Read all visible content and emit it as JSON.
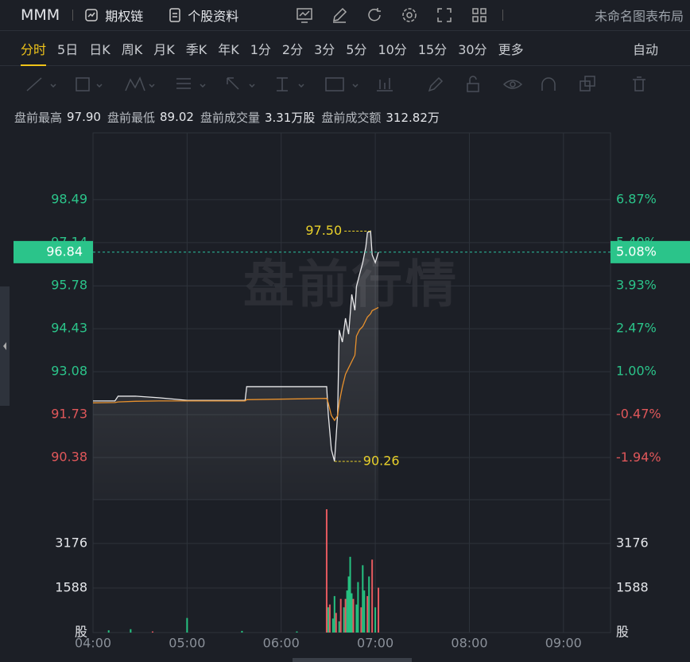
{
  "header": {
    "symbol": "MMM",
    "links": [
      "期权链",
      "个股资料"
    ],
    "layout": "未命名图表布局"
  },
  "tabs": [
    "分时",
    "5日",
    "日K",
    "周K",
    "月K",
    "季K",
    "年K",
    "1分",
    "2分",
    "3分",
    "5分",
    "10分",
    "15分",
    "30分",
    "更多"
  ],
  "mode": "自动",
  "info": [
    {
      "label": "盘前最高",
      "value": "97.90"
    },
    {
      "label": "盘前最低",
      "value": "89.02"
    },
    {
      "label": "盘前成交量",
      "value": "3.31万股"
    },
    {
      "label": "盘前成交额",
      "value": "312.82万"
    }
  ],
  "watermark": "盘前行情",
  "chart_data": [
    {
      "type": "line",
      "x": [
        "04:00",
        "04:14",
        "04:16",
        "04:27",
        "04:42",
        "05:00",
        "05:37",
        "05:38",
        "06:29",
        "06:30",
        "06:32",
        "06:34",
        "06:36",
        "06:37",
        "06:39",
        "06:41",
        "06:43",
        "06:45",
        "06:47",
        "06:48",
        "06:50",
        "06:52",
        "06:54",
        "06:55",
        "06:57",
        "06:58",
        "07:00",
        "07:02"
      ],
      "series": [
        {
          "color": "#e8e8ea",
          "values": [
            92.16,
            92.16,
            92.31,
            92.31,
            92.26,
            92.18,
            92.18,
            92.61,
            92.61,
            91.76,
            90.63,
            90.26,
            91.76,
            94.39,
            94.01,
            94.76,
            94.26,
            95.51,
            95.01,
            95.76,
            96.14,
            96.51,
            97.01,
            97.46,
            97.5,
            96.76,
            96.51,
            96.84
          ]
        },
        {
          "color": "#e8912d",
          "values": [
            92.1,
            92.11,
            92.13,
            92.15,
            92.16,
            92.16,
            92.16,
            92.2,
            92.24,
            92.1,
            91.7,
            91.55,
            91.7,
            92.1,
            92.6,
            93.0,
            93.2,
            93.4,
            93.6,
            94.2,
            94.4,
            94.5,
            94.7,
            94.8,
            94.9,
            95.0,
            95.05,
            95.1
          ]
        }
      ],
      "xlim": [
        "04:00",
        "09:30"
      ],
      "ylim": [
        89.055,
        100.59
      ],
      "yticks": [
        98.49,
        97.14,
        95.78,
        94.43,
        93.08,
        91.73,
        90.38
      ],
      "y2lim": [
        -3.37,
        9.15
      ],
      "y2ticks": [
        {
          "value": 6.87,
          "label": "6.87%"
        },
        {
          "value": 5.4,
          "label": "5.40%"
        },
        {
          "value": 3.93,
          "label": "3.93%"
        },
        {
          "value": 2.47,
          "label": "2.47%"
        },
        {
          "value": 1.0,
          "label": "1.00%"
        },
        {
          "value": -0.47,
          "label": "-0.47%"
        },
        {
          "value": -1.94,
          "label": "-1.94%"
        }
      ],
      "current_price": 96.84,
      "current_change": {
        "value": 5.08,
        "label": "5.08%"
      },
      "annotations": [
        {
          "label": "97.50",
          "value": 97.5,
          "x": "06:57",
          "side": "left"
        },
        {
          "label": "90.26",
          "value": 90.26,
          "x": "06:34",
          "side": "right"
        }
      ],
      "grid": true
    },
    {
      "type": "bar",
      "x": [
        "04:10",
        "04:24",
        "04:38",
        "05:00",
        "05:35",
        "06:10",
        "06:29",
        "06:30",
        "06:31",
        "06:33",
        "06:34",
        "06:35",
        "06:37",
        "06:38",
        "06:40",
        "06:41",
        "06:42",
        "06:43",
        "06:44",
        "06:45",
        "06:46",
        "06:48",
        "06:49",
        "06:51",
        "06:52",
        "06:53",
        "06:55",
        "06:56",
        "06:58",
        "07:00",
        "07:02"
      ],
      "values": [
        80,
        120,
        40,
        520,
        60,
        40,
        4395,
        900,
        1000,
        500,
        1300,
        700,
        400,
        1200,
        900,
        1200,
        1500,
        2000,
        2700,
        1400,
        1200,
        1000,
        1800,
        900,
        2400,
        1500,
        1300,
        2000,
        2600,
        900,
        1600
      ],
      "colors": [
        "#26c281",
        "#26c281",
        "#e55a5f",
        "#26c281",
        "#26c281",
        "#26c281",
        "#e55a5f",
        "#26c281",
        "#e55a5f",
        "#26c281",
        "#26c281",
        "#e55a5f",
        "#26c281",
        "#e55a5f",
        "#26c281",
        "#e55a5f",
        "#26c281",
        "#26c281",
        "#26c281",
        "#26c281",
        "#e55a5f",
        "#26c281",
        "#26c281",
        "#e55a5f",
        "#26c281",
        "#26c281",
        "#e55a5f",
        "#26c281",
        "#e55a5f",
        "#26c281",
        "#e55a5f"
      ],
      "xlim": [
        "04:00",
        "09:30"
      ],
      "ylim": [
        0,
        4736
      ],
      "yticks": [
        3176,
        1588,
        {
          "value": 0,
          "label": "股"
        }
      ],
      "xticks": [
        "04:00",
        "05:00",
        "06:00",
        "07:00",
        "08:00",
        "09:00"
      ],
      "grid": true
    }
  ]
}
